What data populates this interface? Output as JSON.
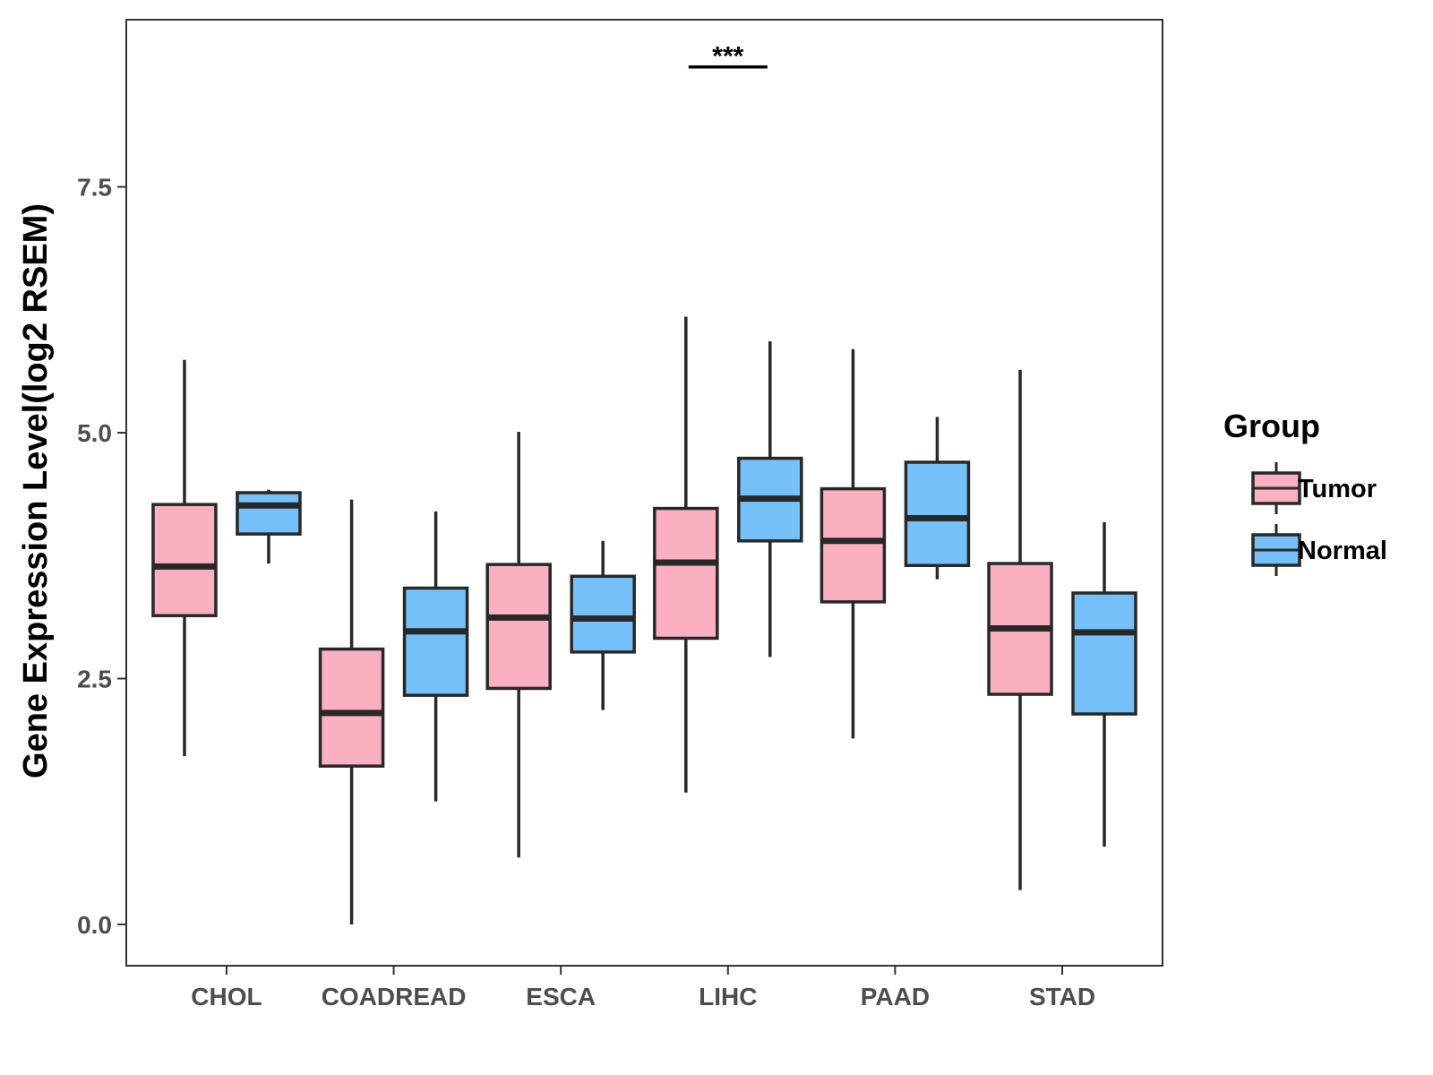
{
  "chart_data": {
    "type": "boxplot",
    "title": "",
    "xlabel": "",
    "ylabel": "Gene Expression Level(log2 RSEM)",
    "ylim": [
      -0.42,
      9.2
    ],
    "yticks": [
      0.0,
      2.5,
      5.0,
      7.5
    ],
    "ytick_labels": [
      "0.0",
      "2.5",
      "5.0",
      "7.5"
    ],
    "grid": false,
    "categories": [
      "CHOL",
      "COADREAD",
      "ESCA",
      "LIHC",
      "PAAD",
      "STAD"
    ],
    "legend": {
      "title": "Group",
      "position": "right",
      "entries": [
        {
          "name": "Tumor",
          "color": "#FBB0C1"
        },
        {
          "name": "Normal",
          "color": "#75C0F8"
        }
      ]
    },
    "series": [
      {
        "name": "Tumor",
        "color": "#FBB0C1",
        "boxes": [
          {
            "low": 1.71,
            "q1": 3.14,
            "median": 3.64,
            "q3": 4.27,
            "high": 5.74
          },
          {
            "low": 0.0,
            "q1": 1.61,
            "median": 2.15,
            "q3": 2.8,
            "high": 4.32
          },
          {
            "low": 0.68,
            "q1": 2.4,
            "median": 3.12,
            "q3": 3.66,
            "high": 5.01
          },
          {
            "low": 1.34,
            "q1": 2.91,
            "median": 3.68,
            "q3": 4.23,
            "high": 6.18
          },
          {
            "low": 1.89,
            "q1": 3.28,
            "median": 3.9,
            "q3": 4.43,
            "high": 5.85
          },
          {
            "low": 0.35,
            "q1": 2.34,
            "median": 3.01,
            "q3": 3.67,
            "high": 5.64
          }
        ]
      },
      {
        "name": "Normal",
        "color": "#75C0F8",
        "boxes": [
          {
            "low": 3.67,
            "q1": 3.97,
            "median": 4.26,
            "q3": 4.39,
            "high": 4.42
          },
          {
            "low": 1.25,
            "q1": 2.33,
            "median": 2.98,
            "q3": 3.42,
            "high": 4.2
          },
          {
            "low": 2.18,
            "q1": 2.77,
            "median": 3.11,
            "q3": 3.54,
            "high": 3.9
          },
          {
            "low": 2.72,
            "q1": 3.9,
            "median": 4.33,
            "q3": 4.74,
            "high": 5.93
          },
          {
            "low": 3.51,
            "q1": 3.65,
            "median": 4.13,
            "q3": 4.7,
            "high": 5.16
          },
          {
            "low": 0.79,
            "q1": 2.14,
            "median": 2.97,
            "q3": 3.37,
            "high": 4.09
          }
        ]
      }
    ],
    "annotations": [
      {
        "text": "***",
        "category": "LIHC",
        "y": 8.72
      }
    ]
  }
}
